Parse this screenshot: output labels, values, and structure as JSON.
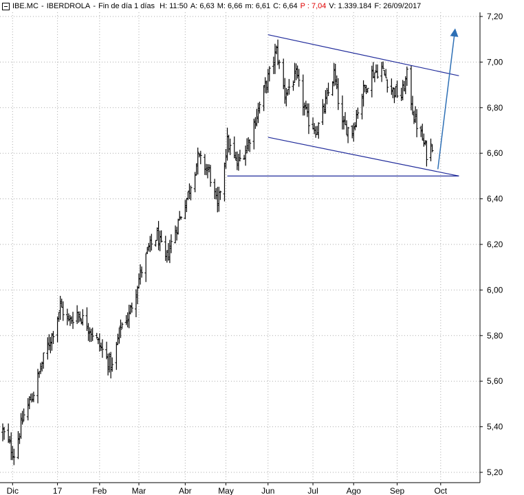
{
  "header": {
    "symbol": "IBE.MC",
    "name": "IBERDROLA",
    "period": "Fin de día 1 días",
    "h_label": "H:",
    "h_value": "11:50",
    "a_label": "A:",
    "a_value": "6,63",
    "m_label": "M:",
    "m_value": "6,66",
    "min_label": "m:",
    "min_value": "6,61",
    "c_label": "C:",
    "c_value": "6,64",
    "p_label": "P :",
    "p_value": "7,04",
    "v_label": "V:",
    "v_value": "1.339.184",
    "f_label": "F:",
    "f_value": "26/09/2017",
    "accent_red": "#e00000"
  },
  "chart_data": {
    "type": "ohlc",
    "title": "IBE.MC - IBERDROLA - Fin de día 1 días",
    "y_axis": {
      "range": [
        5.17,
        7.25
      ],
      "ticks": [
        "7,20",
        "7,00",
        "6,80",
        "6,60",
        "6,40",
        "6,20",
        "6,00",
        "5,80",
        "5,60",
        "5,40",
        "5,20"
      ],
      "position": "right"
    },
    "x_axis": {
      "range": [
        "2016-11-24",
        "2017-10-31"
      ],
      "tick_labels": [
        "Dic",
        "17",
        "Feb",
        "Mar",
        "Abr",
        "May",
        "Jun",
        "Jul",
        "Ago",
        "Sep",
        "Oct"
      ],
      "tick_dates": [
        "2016-12-01",
        "2017-01-02",
        "2017-02-01",
        "2017-03-01",
        "2017-04-03",
        "2017-05-02",
        "2017-06-01",
        "2017-07-03",
        "2017-08-01",
        "2017-09-01",
        "2017-10-02"
      ]
    },
    "grid": true,
    "up_color": "#000000",
    "line_color": "#1f2a9a",
    "arrow_color": "#2d6fb5",
    "price_points": [
      [
        "2016-11-24",
        5.38
      ],
      [
        "2016-12-02",
        5.28
      ],
      [
        "2016-12-09",
        5.45
      ],
      [
        "2016-12-16",
        5.55
      ],
      [
        "2016-12-23",
        5.7
      ],
      [
        "2016-12-30",
        5.82
      ],
      [
        "2017-01-04",
        5.93
      ],
      [
        "2017-01-10",
        5.86
      ],
      [
        "2017-01-16",
        5.9
      ],
      [
        "2017-01-23",
        5.85
      ],
      [
        "2017-01-30",
        5.78
      ],
      [
        "2017-02-06",
        5.7
      ],
      [
        "2017-02-10",
        5.66
      ],
      [
        "2017-02-16",
        5.84
      ],
      [
        "2017-02-22",
        5.89
      ],
      [
        "2017-03-01",
        6.05
      ],
      [
        "2017-03-08",
        6.18
      ],
      [
        "2017-03-14",
        6.24
      ],
      [
        "2017-03-20",
        6.13
      ],
      [
        "2017-03-28",
        6.28
      ],
      [
        "2017-04-05",
        6.42
      ],
      [
        "2017-04-12",
        6.58
      ],
      [
        "2017-04-20",
        6.52
      ],
      [
        "2017-04-26",
        6.36
      ],
      [
        "2017-05-03",
        6.65
      ],
      [
        "2017-05-10",
        6.55
      ],
      [
        "2017-05-17",
        6.63
      ],
      [
        "2017-05-24",
        6.77
      ],
      [
        "2017-06-01",
        6.93
      ],
      [
        "2017-06-07",
        7.05
      ],
      [
        "2017-06-13",
        6.86
      ],
      [
        "2017-06-21",
        6.94
      ],
      [
        "2017-06-29",
        6.75
      ],
      [
        "2017-07-06",
        6.7
      ],
      [
        "2017-07-12",
        6.82
      ],
      [
        "2017-07-18",
        6.95
      ],
      [
        "2017-07-24",
        6.72
      ],
      [
        "2017-07-31",
        6.7
      ],
      [
        "2017-08-07",
        6.86
      ],
      [
        "2017-08-14",
        6.95
      ],
      [
        "2017-08-21",
        6.97
      ],
      [
        "2017-08-28",
        6.88
      ],
      [
        "2017-09-04",
        6.85
      ],
      [
        "2017-09-08",
        6.94
      ],
      [
        "2017-09-13",
        6.76
      ],
      [
        "2017-09-19",
        6.66
      ],
      [
        "2017-09-22",
        6.6
      ],
      [
        "2017-09-26",
        6.64
      ]
    ],
    "annotations": [
      {
        "type": "trendline",
        "from": [
          "2017-06-01",
          7.12
        ],
        "to": [
          "2017-10-15",
          6.94
        ]
      },
      {
        "type": "trendline",
        "from": [
          "2017-06-01",
          6.67
        ],
        "to": [
          "2017-10-15",
          6.5
        ]
      },
      {
        "type": "horizontal",
        "from": [
          "2017-05-03",
          6.5
        ],
        "to": [
          "2017-10-15",
          6.5
        ]
      },
      {
        "type": "arrow",
        "from": [
          "2017-09-30",
          6.53
        ],
        "to": [
          "2017-10-12",
          7.13
        ]
      }
    ]
  }
}
